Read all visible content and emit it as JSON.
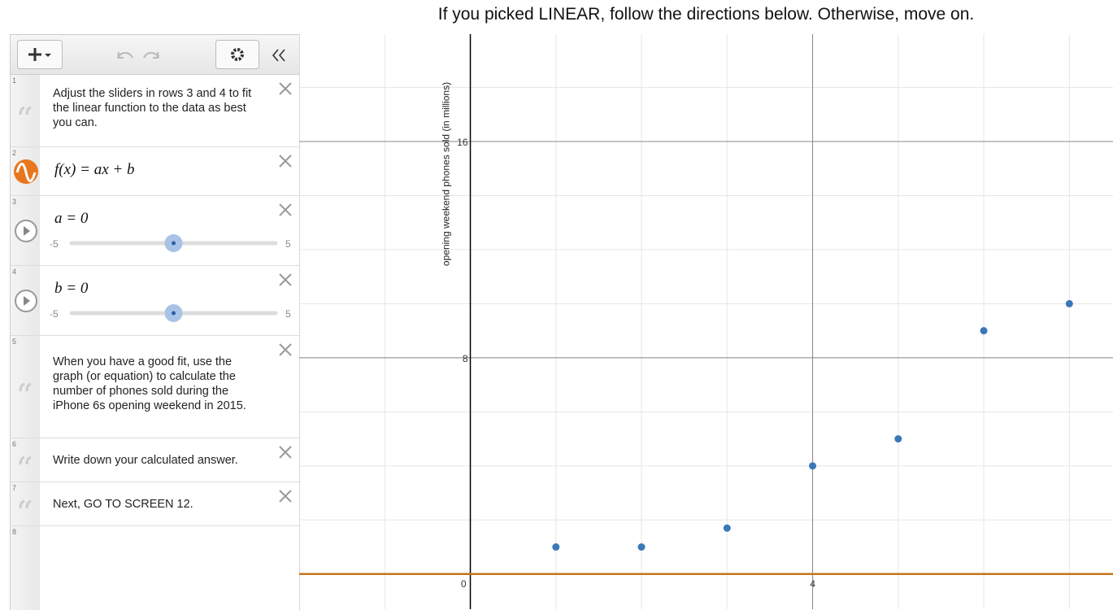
{
  "title": "If you picked LINEAR, follow the directions below. Otherwise, move on.",
  "expressions": [
    {
      "number": 1,
      "text": "Adjust the sliders in rows 3 and 4 to fit the linear function to the data as best you can."
    },
    {
      "number": 2,
      "expression": "f(x) = ax + b"
    },
    {
      "number": 3,
      "expression": "a = 0",
      "value": 0,
      "min": -5,
      "max": 5
    },
    {
      "number": 4,
      "expression": "b = 0",
      "value": 0,
      "min": -5,
      "max": 5
    },
    {
      "number": 5,
      "text": "When you have a good fit, use the graph (or equation) to calculate the number of phones sold during the iPhone 6s opening weekend in 2015."
    },
    {
      "number": 6,
      "text": "Write down your calculated answer."
    },
    {
      "number": 7,
      "text": "Next, GO TO SCREEN 12."
    },
    {
      "number": 8
    }
  ],
  "chart_data": {
    "type": "scatter",
    "y_label": "opening weekend phones sold (in millions)",
    "x": [
      1,
      2,
      3,
      4,
      5,
      6,
      7
    ],
    "values": [
      1,
      1,
      1.7,
      4,
      5,
      9,
      10
    ],
    "color": "#3a78b9",
    "line_color": "#c7741e",
    "xlim": [
      -2,
      7.51
    ],
    "ylim": [
      -1.3,
      19.97
    ],
    "xticks": [
      0,
      4
    ],
    "yticks": [
      8,
      16
    ],
    "grid": true
  }
}
